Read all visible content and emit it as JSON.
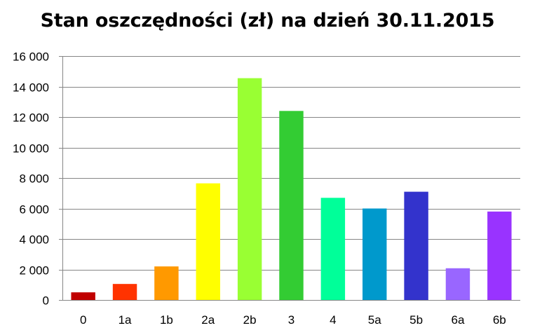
{
  "chart_data": {
    "type": "bar",
    "title": "Stan oszczędności (zł) na dzień 30.11.2015",
    "categories": [
      "0",
      "1a",
      "1b",
      "2a",
      "2b",
      "3",
      "4",
      "5a",
      "5b",
      "6a",
      "6b"
    ],
    "values": [
      500,
      1050,
      2200,
      7650,
      14550,
      12400,
      6700,
      6000,
      7100,
      2080,
      5800
    ],
    "colors": [
      "#C00000",
      "#FF3300",
      "#FF9900",
      "#FFFF00",
      "#99FF33",
      "#33CC33",
      "#00FF99",
      "#0099CC",
      "#3333CC",
      "#9966FF",
      "#9933FF"
    ],
    "ylim": [
      0,
      16000
    ],
    "yticks": [
      0,
      2000,
      4000,
      6000,
      8000,
      10000,
      12000,
      14000,
      16000
    ],
    "ytick_labels": [
      "0",
      "2 000",
      "4 000",
      "6 000",
      "8 000",
      "10 000",
      "12 000",
      "14 000",
      "16 000"
    ],
    "grid": true,
    "legend": "none",
    "xlabel": "",
    "ylabel": ""
  }
}
